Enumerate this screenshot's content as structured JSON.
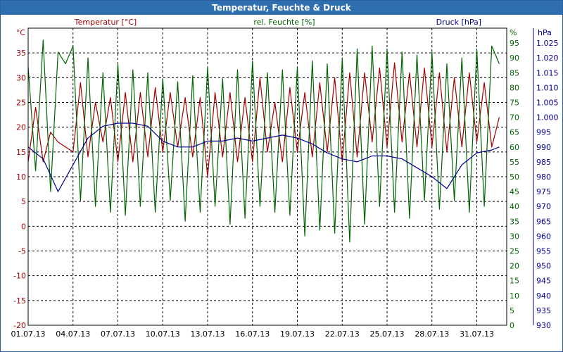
{
  "window": {
    "title": "Temperatur, Feuchte & Druck"
  },
  "chart_data": {
    "type": "line",
    "title": "Temperatur, Feuchte & Druck",
    "x": [
      "01.07.13",
      "04.07.13",
      "07.07.13",
      "10.07.13",
      "13.07.13",
      "16.07.13",
      "19.07.13",
      "22.07.13",
      "25.07.13",
      "28.07.13",
      "31.07.13"
    ],
    "xlim": [
      0,
      32
    ],
    "axes": {
      "left": {
        "label": "Temperatur [°C]",
        "unit": "°C",
        "range": [
          -20,
          40
        ],
        "ticks": [
          35,
          30,
          25,
          20,
          15,
          10,
          5,
          0,
          -5,
          -10,
          -15,
          -20
        ],
        "color": "#a00000"
      },
      "middle": {
        "label": "rel. Feuchte [%]",
        "unit": "%",
        "range": [
          0,
          100
        ],
        "ticks": [
          95,
          90,
          85,
          80,
          75,
          70,
          65,
          60,
          55,
          50,
          45,
          40,
          35,
          30,
          25,
          20,
          15,
          10,
          5,
          0
        ],
        "color": "#006400"
      },
      "right": {
        "label": "Druck [hPa]",
        "unit": "hPa",
        "range": [
          930,
          1030
        ],
        "ticks": [
          "1.025",
          "1.020",
          "1.015",
          "1.010",
          "1.005",
          "1.000",
          "995",
          "990",
          "985",
          "980",
          "975",
          "970",
          "965",
          "960",
          "955",
          "950",
          "945",
          "940",
          "935",
          "930"
        ],
        "color": "#00008b"
      }
    },
    "grid": true,
    "series": [
      {
        "name": "Temperatur",
        "axis": "left",
        "color": "#a00000",
        "x": [
          0,
          0.5,
          1,
          1.5,
          2,
          2.5,
          3,
          3.5,
          4,
          4.5,
          5,
          5.5,
          6,
          6.5,
          7,
          7.5,
          8,
          8.5,
          9,
          9.5,
          10,
          10.5,
          11,
          11.5,
          12,
          12.5,
          13,
          13.5,
          14,
          14.5,
          15,
          15.5,
          16,
          16.5,
          17,
          17.5,
          18,
          18.5,
          19,
          19.5,
          20,
          20.5,
          21,
          21.5,
          22,
          22.5,
          23,
          23.5,
          24,
          24.5,
          25,
          25.5,
          26,
          26.5,
          27,
          27.5,
          28,
          28.5,
          29,
          29.5,
          30,
          30.5,
          31,
          31.5
        ],
        "values": [
          13,
          24,
          13,
          19,
          17,
          16,
          15,
          29,
          14,
          25,
          17,
          26,
          13,
          27,
          13,
          27,
          14,
          28,
          15,
          27,
          16,
          26,
          14,
          26,
          10,
          27,
          14,
          27,
          13,
          26,
          13,
          30,
          15,
          25,
          13,
          28,
          15,
          27,
          14,
          29,
          15,
          30,
          13,
          31,
          14,
          31,
          17,
          32,
          16,
          33,
          17,
          31,
          16,
          32,
          16,
          31,
          15,
          30,
          16,
          31,
          17,
          29,
          16,
          22
        ]
      },
      {
        "name": "rel. Feuchte",
        "axis": "middle",
        "color": "#006400",
        "x": [
          0,
          0.5,
          1,
          1.5,
          2,
          2.5,
          3,
          3.5,
          4,
          4.5,
          5,
          5.5,
          6,
          6.5,
          7,
          7.5,
          8,
          8.5,
          9,
          9.5,
          10,
          10.5,
          11,
          11.5,
          12,
          12.5,
          13,
          13.5,
          14,
          14.5,
          15,
          15.5,
          16,
          16.5,
          17,
          17.5,
          18,
          18.5,
          19,
          19.5,
          20,
          20.5,
          21,
          21.5,
          22,
          22.5,
          23,
          23.5,
          24,
          24.5,
          25,
          25.5,
          26,
          26.5,
          27,
          27.5,
          28,
          28.5,
          29,
          29.5,
          30,
          30.5,
          31,
          31.5
        ],
        "values": [
          87,
          52,
          96,
          45,
          92,
          88,
          94,
          42,
          90,
          40,
          85,
          38,
          88,
          37,
          86,
          40,
          85,
          38,
          83,
          42,
          82,
          35,
          84,
          38,
          87,
          40,
          83,
          34,
          86,
          36,
          89,
          40,
          85,
          38,
          86,
          37,
          87,
          30,
          89,
          32,
          88,
          31,
          90,
          28,
          93,
          34,
          94,
          40,
          93,
          38,
          92,
          36,
          91,
          42,
          92,
          39,
          88,
          42,
          90,
          38,
          93,
          40,
          94,
          88
        ]
      },
      {
        "name": "Druck",
        "axis": "right",
        "color": "#00008b",
        "x": [
          0,
          1,
          2,
          3,
          4,
          5,
          6,
          7,
          8,
          9,
          10,
          11,
          12,
          13,
          14,
          15,
          16,
          17,
          18,
          19,
          20,
          21,
          22,
          23,
          24,
          25,
          26,
          27,
          28,
          29,
          30,
          31,
          31.5
        ],
        "values": [
          990,
          986,
          975,
          984,
          993,
          997,
          998,
          998,
          997,
          992,
          990,
          990,
          992,
          992,
          993,
          992,
          993,
          994,
          993,
          991,
          988,
          986,
          985,
          987,
          987,
          986,
          983,
          980,
          976,
          984,
          988,
          989,
          990
        ]
      }
    ]
  }
}
